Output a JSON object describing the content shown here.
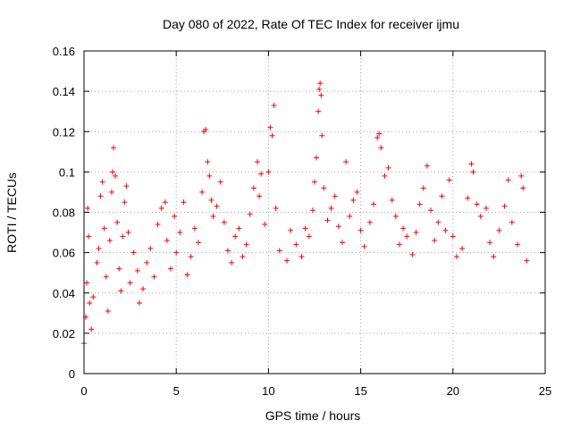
{
  "chart_data": {
    "type": "scatter",
    "title": "Day 080 of 2022, Rate Of TEC Index for receiver ijmu",
    "xlabel": "GPS time / hours",
    "ylabel": "ROTI / TECUs",
    "xlim": [
      0,
      25
    ],
    "ylim": [
      0,
      0.16
    ],
    "grid": true,
    "marker": "+",
    "color": "#ff0000",
    "x_ticks": [
      {
        "value": 0,
        "label": "0"
      },
      {
        "value": 5,
        "label": "5"
      },
      {
        "value": 10,
        "label": "10"
      },
      {
        "value": 15,
        "label": "15"
      },
      {
        "value": 20,
        "label": "20"
      },
      {
        "value": 25,
        "label": "25"
      }
    ],
    "y_ticks": [
      {
        "value": 0,
        "label": "0"
      },
      {
        "value": 0.02,
        "label": "0.02"
      },
      {
        "value": 0.04,
        "label": "0.04"
      },
      {
        "value": 0.06,
        "label": "0.06"
      },
      {
        "value": 0.08,
        "label": "0.08"
      },
      {
        "value": 0.1,
        "label": "0.1"
      },
      {
        "value": 0.12,
        "label": "0.12"
      },
      {
        "value": 0.14,
        "label": "0.14"
      },
      {
        "value": 0.16,
        "label": "0.16"
      }
    ],
    "series": [
      {
        "points": [
          [
            0.0,
            0.015
          ],
          [
            0.1,
            0.028
          ],
          [
            0.15,
            0.045
          ],
          [
            0.2,
            0.082
          ],
          [
            0.25,
            0.068
          ],
          [
            0.3,
            0.035
          ],
          [
            0.4,
            0.022
          ],
          [
            0.5,
            0.038
          ],
          [
            0.7,
            0.055
          ],
          [
            0.8,
            0.062
          ],
          [
            0.9,
            0.088
          ],
          [
            1.0,
            0.095
          ],
          [
            1.1,
            0.072
          ],
          [
            1.2,
            0.048
          ],
          [
            1.3,
            0.031
          ],
          [
            1.4,
            0.066
          ],
          [
            1.5,
            0.09
          ],
          [
            1.55,
            0.1
          ],
          [
            1.6,
            0.112
          ],
          [
            1.7,
            0.098
          ],
          [
            1.8,
            0.075
          ],
          [
            1.9,
            0.052
          ],
          [
            2.0,
            0.041
          ],
          [
            2.1,
            0.068
          ],
          [
            2.2,
            0.085
          ],
          [
            2.3,
            0.093
          ],
          [
            2.4,
            0.07
          ],
          [
            2.5,
            0.045
          ],
          [
            2.7,
            0.06
          ],
          [
            2.9,
            0.051
          ],
          [
            3.0,
            0.035
          ],
          [
            3.2,
            0.042
          ],
          [
            3.4,
            0.055
          ],
          [
            3.6,
            0.062
          ],
          [
            3.8,
            0.048
          ],
          [
            4.0,
            0.074
          ],
          [
            4.2,
            0.082
          ],
          [
            4.4,
            0.085
          ],
          [
            4.5,
            0.066
          ],
          [
            4.7,
            0.052
          ],
          [
            4.9,
            0.078
          ],
          [
            5.0,
            0.06
          ],
          [
            5.2,
            0.07
          ],
          [
            5.4,
            0.085
          ],
          [
            5.6,
            0.049
          ],
          [
            5.8,
            0.058
          ],
          [
            6.0,
            0.072
          ],
          [
            6.2,
            0.065
          ],
          [
            6.4,
            0.09
          ],
          [
            6.5,
            0.12
          ],
          [
            6.6,
            0.121
          ],
          [
            6.7,
            0.105
          ],
          [
            6.8,
            0.098
          ],
          [
            6.9,
            0.086
          ],
          [
            7.0,
            0.078
          ],
          [
            7.2,
            0.083
          ],
          [
            7.4,
            0.095
          ],
          [
            7.6,
            0.075
          ],
          [
            7.8,
            0.061
          ],
          [
            8.0,
            0.055
          ],
          [
            8.2,
            0.068
          ],
          [
            8.4,
            0.072
          ],
          [
            8.6,
            0.058
          ],
          [
            8.8,
            0.064
          ],
          [
            9.0,
            0.079
          ],
          [
            9.2,
            0.092
          ],
          [
            9.4,
            0.105
          ],
          [
            9.5,
            0.088
          ],
          [
            9.6,
            0.099
          ],
          [
            9.8,
            0.074
          ],
          [
            10.0,
            0.1
          ],
          [
            10.1,
            0.122
          ],
          [
            10.2,
            0.118
          ],
          [
            10.3,
            0.133
          ],
          [
            10.4,
            0.082
          ],
          [
            10.6,
            0.061
          ],
          [
            11.0,
            0.056
          ],
          [
            11.2,
            0.071
          ],
          [
            11.5,
            0.064
          ],
          [
            11.8,
            0.058
          ],
          [
            12.0,
            0.072
          ],
          [
            12.2,
            0.068
          ],
          [
            12.4,
            0.081
          ],
          [
            12.5,
            0.095
          ],
          [
            12.6,
            0.107
          ],
          [
            12.7,
            0.13
          ],
          [
            12.75,
            0.141
          ],
          [
            12.8,
            0.144
          ],
          [
            12.85,
            0.138
          ],
          [
            12.9,
            0.118
          ],
          [
            13.0,
            0.092
          ],
          [
            13.2,
            0.076
          ],
          [
            13.4,
            0.082
          ],
          [
            13.6,
            0.088
          ],
          [
            13.8,
            0.073
          ],
          [
            14.0,
            0.065
          ],
          [
            14.2,
            0.105
          ],
          [
            14.4,
            0.078
          ],
          [
            14.6,
            0.086
          ],
          [
            14.8,
            0.09
          ],
          [
            15.0,
            0.071
          ],
          [
            15.2,
            0.063
          ],
          [
            15.5,
            0.075
          ],
          [
            15.7,
            0.084
          ],
          [
            15.9,
            0.117
          ],
          [
            16.0,
            0.119
          ],
          [
            16.1,
            0.112
          ],
          [
            16.3,
            0.098
          ],
          [
            16.5,
            0.102
          ],
          [
            16.7,
            0.086
          ],
          [
            16.9,
            0.078
          ],
          [
            17.1,
            0.064
          ],
          [
            17.3,
            0.072
          ],
          [
            17.5,
            0.068
          ],
          [
            17.8,
            0.059
          ],
          [
            18.0,
            0.07
          ],
          [
            18.2,
            0.084
          ],
          [
            18.4,
            0.092
          ],
          [
            18.6,
            0.103
          ],
          [
            18.8,
            0.081
          ],
          [
            19.0,
            0.066
          ],
          [
            19.2,
            0.075
          ],
          [
            19.4,
            0.088
          ],
          [
            19.6,
            0.071
          ],
          [
            19.8,
            0.096
          ],
          [
            20.0,
            0.068
          ],
          [
            20.2,
            0.058
          ],
          [
            20.5,
            0.062
          ],
          [
            20.8,
            0.087
          ],
          [
            21.0,
            0.104
          ],
          [
            21.1,
            0.1
          ],
          [
            21.3,
            0.084
          ],
          [
            21.5,
            0.078
          ],
          [
            21.8,
            0.082
          ],
          [
            22.0,
            0.065
          ],
          [
            22.2,
            0.058
          ],
          [
            22.5,
            0.071
          ],
          [
            22.8,
            0.083
          ],
          [
            23.0,
            0.096
          ],
          [
            23.2,
            0.075
          ],
          [
            23.5,
            0.064
          ],
          [
            23.7,
            0.098
          ],
          [
            23.8,
            0.092
          ],
          [
            24.0,
            0.056
          ]
        ]
      }
    ]
  }
}
